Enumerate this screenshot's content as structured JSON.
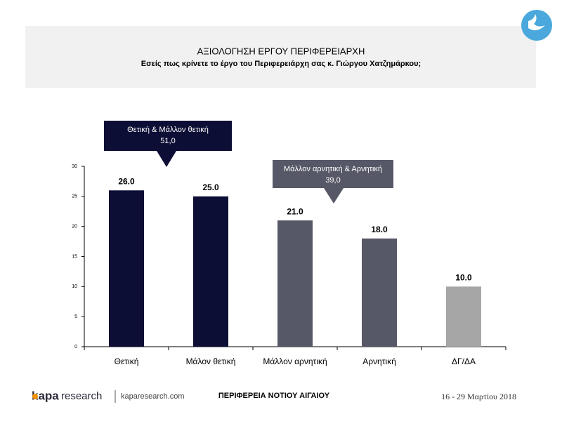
{
  "chart_data": {
    "type": "bar",
    "title": "ΑΞΙΟΛΟΓΗΣΗ ΕΡΓΟΥ ΠΕΡΙΦΕΡΕΙΑΡΧΗ",
    "subtitle": "Εσείς πως κρίνετε το έργο του Περιφερειάρχη σας κ. Γιώργου Χατζημάρκου;",
    "categories": [
      "Θετική",
      "Μάλον θετική",
      "Μάλλον αρνητική",
      "Αρνητική",
      "ΔΓ/ΔΑ"
    ],
    "values": [
      26,
      25,
      21,
      18,
      10
    ],
    "value_labels": [
      "26.0",
      "25.0",
      "21.0",
      "18.0",
      "10.0"
    ],
    "colors": [
      "#0c0e35",
      "#0c0e35",
      "#575867",
      "#575867",
      "#a6a6a6"
    ],
    "ylim": [
      0,
      30
    ],
    "yticks": [
      0,
      5,
      10,
      15,
      20,
      25,
      30
    ],
    "grid": false,
    "annotations": [
      {
        "text": "Θετική & Μάλλον θετική",
        "total": "51,0",
        "color": "#0c0e35"
      },
      {
        "text": "Μάλλον αρνητική & Αρνητική",
        "total": "39,0",
        "color": "#575867"
      }
    ]
  },
  "footer": {
    "brand_a": "kapa",
    "brand_b": "research",
    "site": "kaparesearch.com",
    "region": "ΠΕΡΙΦΕΡΕΙΑ ΝΟΤΙΟΥ ΑΙΓΑΙΟΥ",
    "date": "16 - 29 Μαρτίου 2018"
  }
}
